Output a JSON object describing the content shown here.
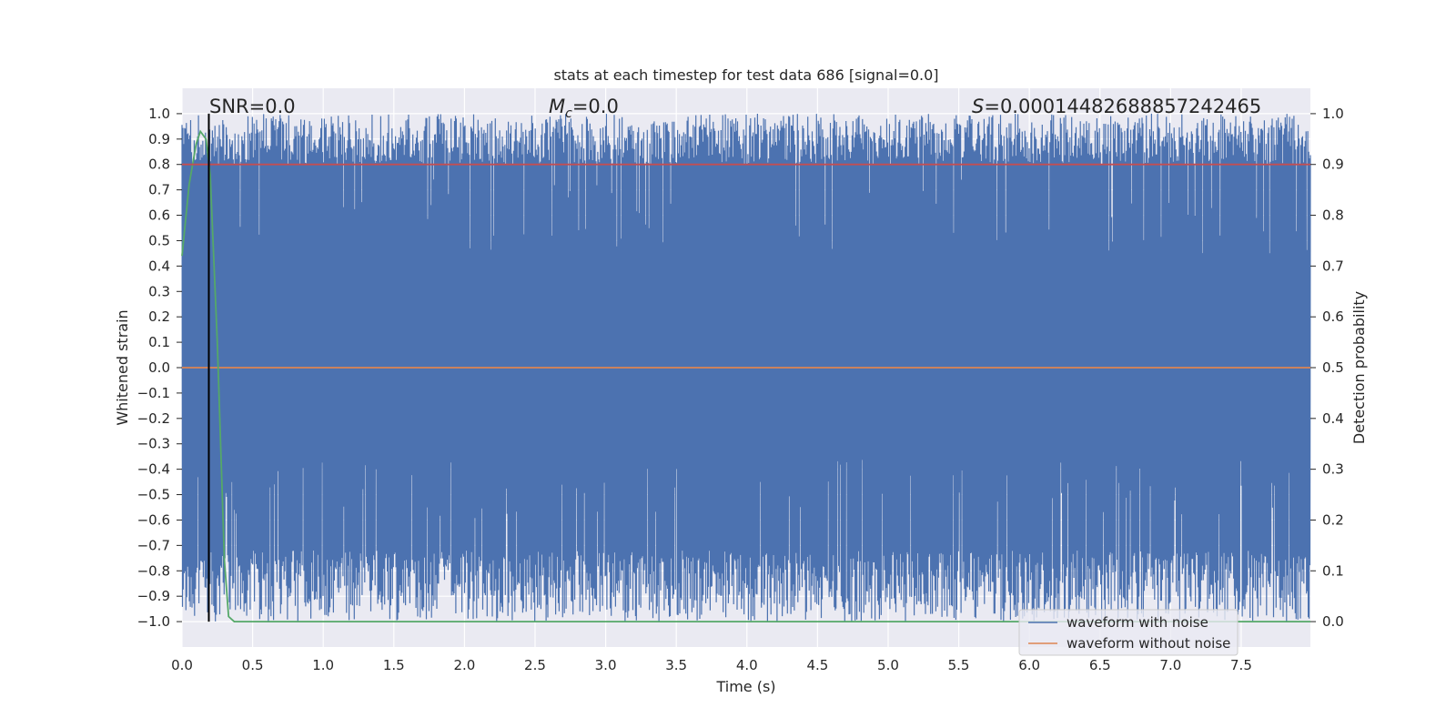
{
  "chart_data": {
    "type": "line",
    "title": "stats at each timestep for test data 686 [signal=0.0]",
    "xlabel": "Time (s)",
    "ylabel": "Whitened strain",
    "y2label": "Detection probability",
    "xlim": [
      0.0,
      7.99
    ],
    "ylim": [
      -1.1,
      1.1
    ],
    "y2lim": [
      -0.05,
      1.05
    ],
    "x_ticks": [
      "0.0",
      "0.5",
      "1.0",
      "1.5",
      "2.0",
      "2.5",
      "3.0",
      "3.5",
      "4.0",
      "4.5",
      "5.0",
      "5.5",
      "6.0",
      "6.5",
      "7.0",
      "7.5"
    ],
    "y_ticks": [
      "1.0",
      "0.9",
      "0.8",
      "0.7",
      "0.6",
      "0.5",
      "0.4",
      "0.3",
      "0.2",
      "0.1",
      "0.0",
      "−0.1",
      "−0.2",
      "−0.3",
      "−0.4",
      "−0.5",
      "−0.6",
      "−0.7",
      "−0.8",
      "−0.9",
      "−1.0"
    ],
    "y2_ticks": [
      "1.0",
      "0.9",
      "0.8",
      "0.7",
      "0.6",
      "0.5",
      "0.4",
      "0.3",
      "0.2",
      "0.1",
      "0.0"
    ],
    "grid": true,
    "legend_position": "lower-right",
    "annotations": {
      "snr": "SNR=0.0",
      "mc_symbol": "M",
      "mc_sub": "c",
      "mc_value": "=0.0",
      "s_symbol": "S",
      "s_value": "=0.00014482688857242465"
    },
    "series": [
      {
        "name": "waveform with noise",
        "color": "#4c72b0",
        "axis": "left",
        "description_values": {
          "upper_envelope_typical": 0.9,
          "lower_envelope_typical": -0.85,
          "min": -1.0,
          "max": 1.0
        }
      },
      {
        "name": "waveform without noise",
        "color": "#dd8452",
        "axis": "left",
        "x": [
          0.0,
          7.99
        ],
        "y": [
          0.0,
          0.0
        ]
      },
      {
        "color": "#55a868",
        "axis": "right",
        "x": [
          0.0,
          0.05,
          0.1,
          0.13,
          0.17,
          0.2,
          0.25,
          0.3,
          0.33,
          0.37,
          0.5,
          1.0,
          2.0,
          3.0,
          4.0,
          5.0,
          6.0,
          7.0,
          7.99
        ],
        "y": [
          0.72,
          0.86,
          0.94,
          0.965,
          0.95,
          0.88,
          0.55,
          0.12,
          0.01,
          0.0,
          0.0,
          0.0,
          0.0,
          0.0,
          0.0,
          0.0,
          0.0,
          0.0,
          0.0
        ]
      },
      {
        "color": "#c44e52",
        "axis": "right",
        "x": [
          0.0,
          7.99
        ],
        "y": [
          0.9,
          0.9
        ]
      },
      {
        "color": "#000000",
        "axis": "left",
        "type": "vline",
        "x": 0.19,
        "y": [
          -1.0,
          1.0
        ]
      }
    ]
  }
}
